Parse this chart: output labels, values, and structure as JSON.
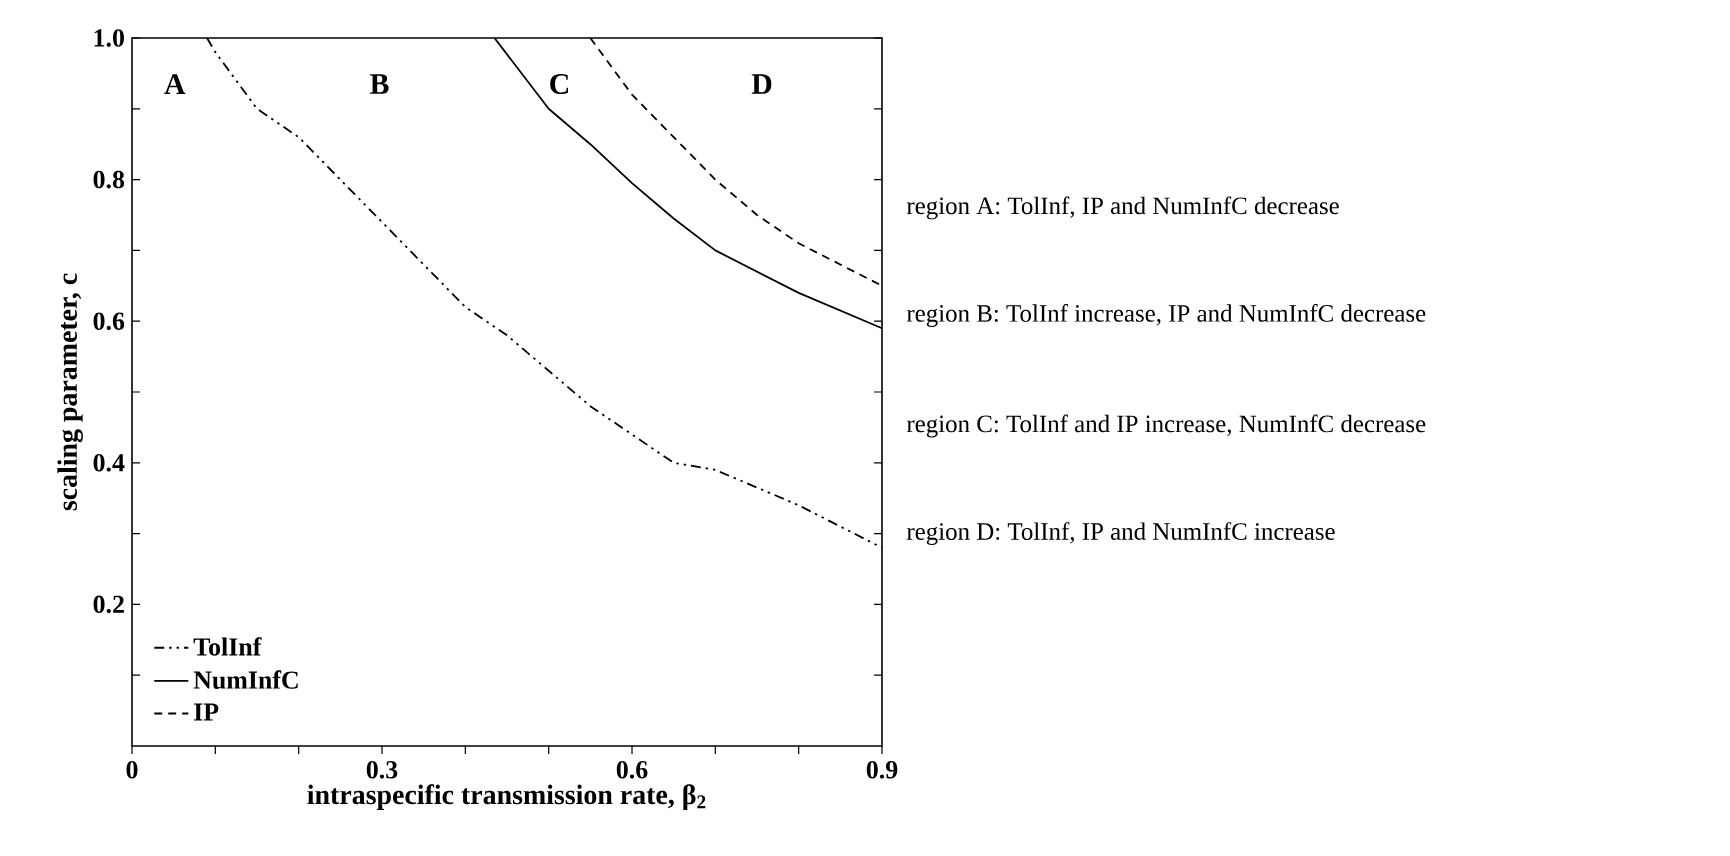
{
  "chart_data": {
    "type": "line",
    "xlabel": "intraspecific transmission rate, β$_{2}$",
    "ylabel": "scaling parameter, c",
    "xlim": [
      0,
      0.9
    ],
    "ylim": [
      0,
      1.0
    ],
    "xticks": [
      0,
      {
        "value": 0.1,
        "label": null
      },
      {
        "value": 0.2,
        "label": null
      },
      0.3,
      {
        "value": 0.4,
        "label": null
      },
      {
        "value": 0.5,
        "label": null
      },
      0.6,
      {
        "value": 0.7,
        "label": null
      },
      {
        "value": 0.8,
        "label": null
      },
      0.9
    ],
    "yticks": [
      {
        "value": 0.1,
        "label": null
      },
      0.2,
      {
        "value": 0.3,
        "label": null
      },
      0.4,
      {
        "value": 0.5,
        "label": null
      },
      0.6,
      {
        "value": 0.7,
        "label": null
      },
      0.8,
      {
        "value": 0.9,
        "label": null
      },
      {
        "value": 1.0,
        "label": "1.0"
      }
    ],
    "legend": "bottom left",
    "grid": false,
    "marker": "none",
    "series": [
      {
        "name": "TolInf",
        "color": "#000000",
        "line_style": "dashdot",
        "x": [
          0.09,
          0.1,
          0.15,
          0.2,
          0.25,
          0.3,
          0.35,
          0.4,
          0.45,
          0.5,
          0.55,
          0.6,
          0.65,
          0.7,
          0.8,
          0.9
        ],
        "values": [
          1.0,
          0.98,
          0.9,
          0.86,
          0.8,
          0.74,
          0.68,
          0.62,
          0.58,
          0.53,
          0.48,
          0.44,
          0.4,
          0.39,
          0.34,
          0.28
        ]
      },
      {
        "name": "NumInfC",
        "color": "#000000",
        "line_style": "solid",
        "x": [
          0.435,
          0.5,
          0.55,
          0.6,
          0.65,
          0.7,
          0.8,
          0.9
        ],
        "values": [
          1.0,
          0.9,
          0.85,
          0.795,
          0.745,
          0.7,
          0.64,
          0.59
        ]
      },
      {
        "name": "IP",
        "color": "#000000",
        "line_style": "dashed",
        "x": [
          0.55,
          0.6,
          0.65,
          0.7,
          0.75,
          0.8,
          0.9
        ],
        "values": [
          1.0,
          0.92,
          0.86,
          0.8,
          0.75,
          0.71,
          0.65
        ]
      }
    ],
    "annotations": [
      "A",
      "B",
      "C",
      "D",
      "region A: TolInf, IP and NumInfC decrease",
      "region B: TolInf increase, IP and NumInfC decrease",
      "region C: TolInf and IP increase, NumInfC decrease",
      "region D: TolInf, IP and NumInfC increase"
    ]
  }
}
